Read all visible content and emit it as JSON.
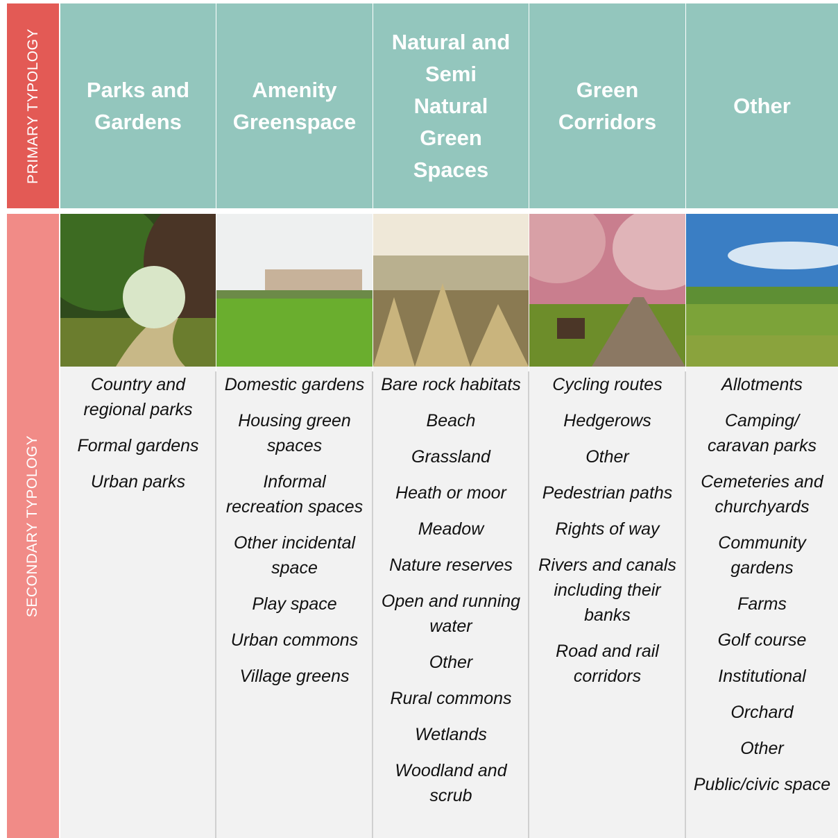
{
  "primary_label": "PRIMARY TYPOLOGY",
  "secondary_label": "SECONDARY TYPOLOGY",
  "columns": [
    {
      "header": "Parks and Gardens",
      "items": [
        "Country and regional parks",
        "Formal gardens",
        "Urban parks"
      ]
    },
    {
      "header": "Amenity Greenspace",
      "items": [
        "Domestic gardens",
        "Housing green spaces",
        "Informal recreation spaces",
        "Other incidental space",
        "Play space",
        "Urban commons",
        "Village greens"
      ]
    },
    {
      "header": "Natural and Semi Natural Green Spaces",
      "items": [
        "Bare rock habitats",
        "Beach",
        "Grassland",
        "Heath or moor",
        "Meadow",
        "Nature reserves",
        "Open and running water",
        "Other",
        "Rural commons",
        "Wetlands",
        "Woodland and scrub"
      ]
    },
    {
      "header": "Green Corridors",
      "items": [
        "Cycling routes",
        "Hedgerows",
        "Other",
        "Pedestrian paths",
        "Rights of way",
        "Rivers and canals including their banks",
        "Road and rail corridors"
      ]
    },
    {
      "header": "Other",
      "items": [
        "Allotments",
        "Camping/ caravan parks",
        "Cemeteries and churchyards",
        "Community gardens",
        "Farms",
        "Golf course",
        "Institutional",
        "Orchard",
        "Other",
        "Public/civic space"
      ]
    }
  ]
}
